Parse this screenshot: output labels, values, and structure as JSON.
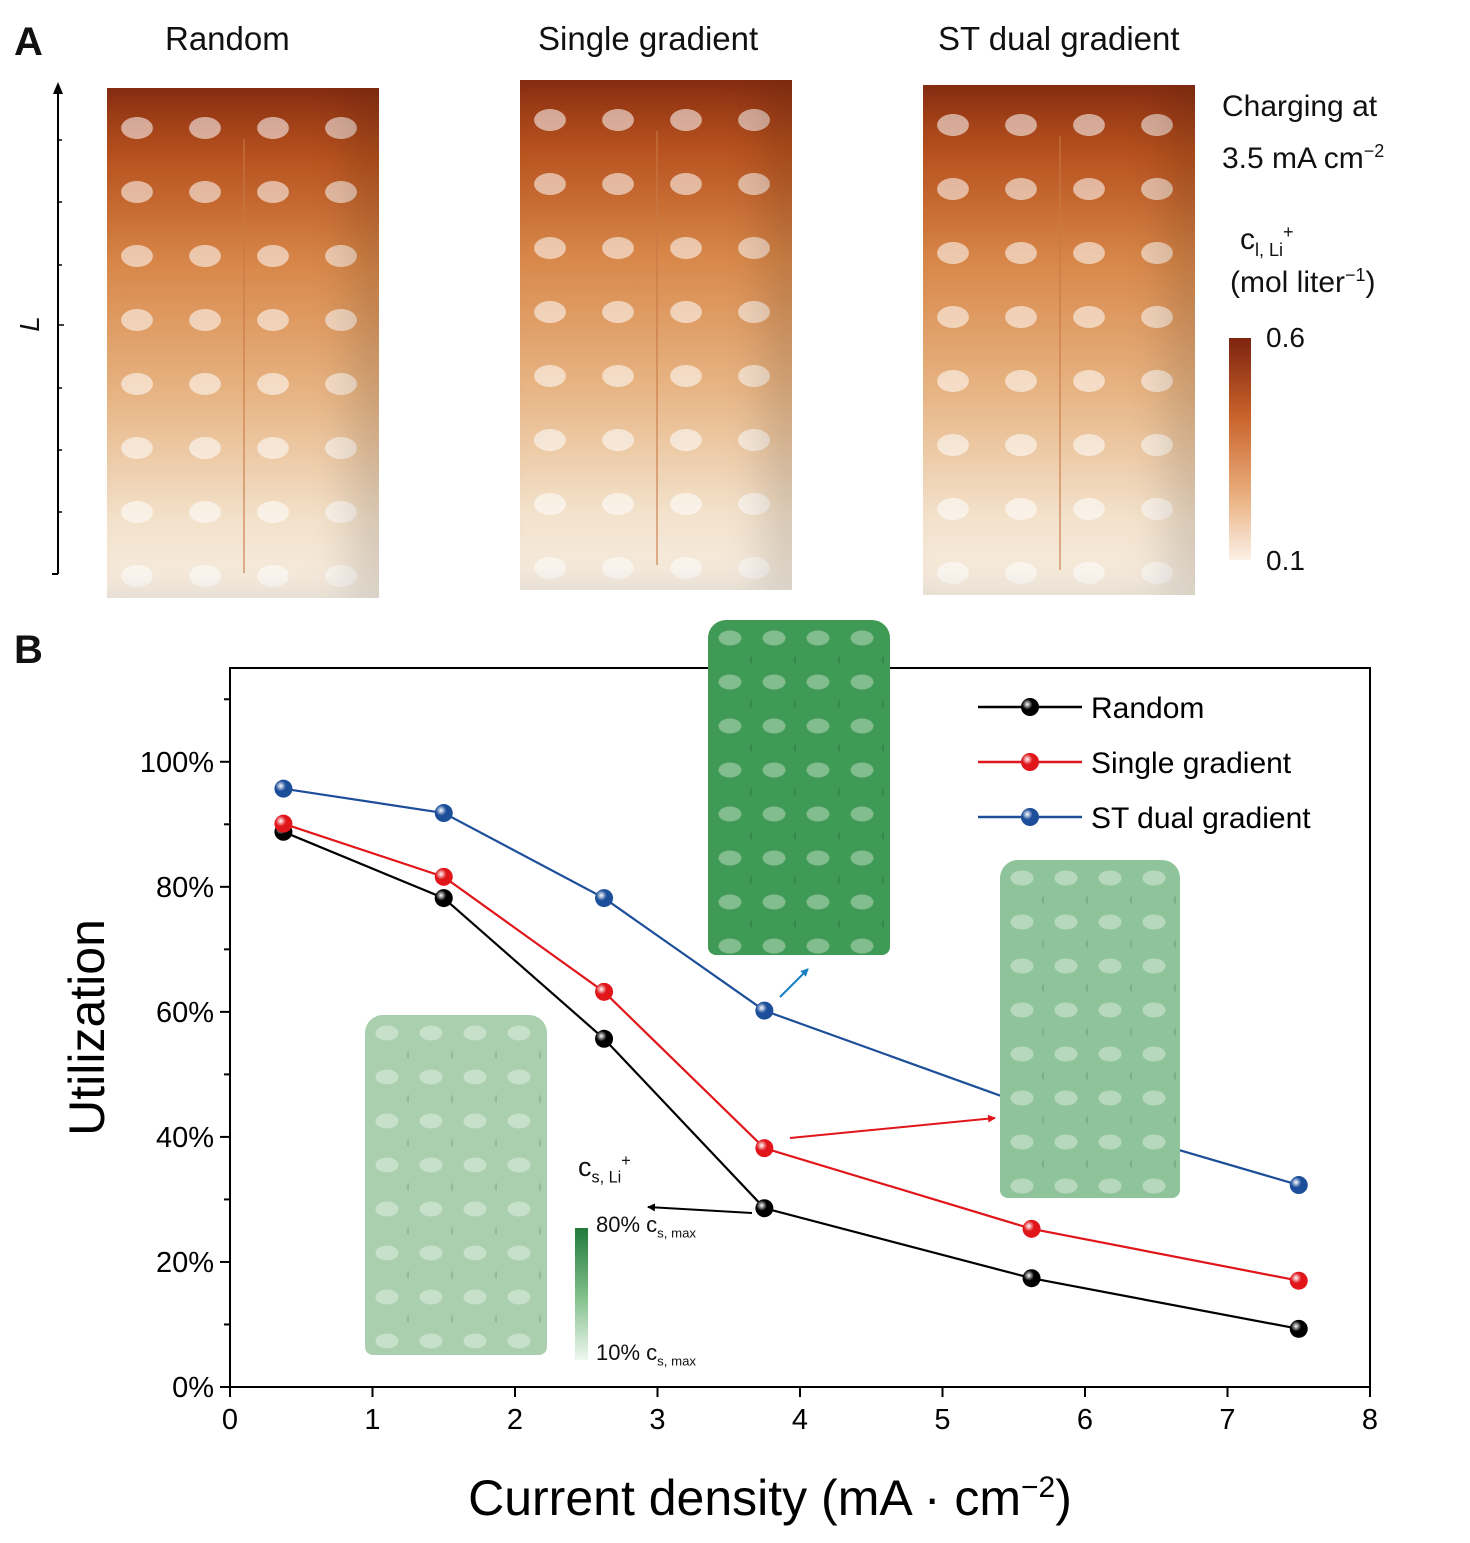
{
  "panel_a": {
    "letter": "A",
    "columns": [
      "Random",
      "Single gradient",
      "ST dual gradient"
    ],
    "axis_label": "L",
    "condition_line1": "Charging at",
    "condition_line2": "3.5 mA cm",
    "condition_exp": "−2",
    "colorbar": {
      "symbol": "c",
      "subscript": "l, Li",
      "sup": "+",
      "unit": "(mol liter",
      "unit_exp": "−1",
      "unit_close": ")",
      "max": "0.6",
      "min": "0.1",
      "colors": [
        "#7d2410",
        "#fbf1e6"
      ]
    }
  },
  "panel_b": {
    "letter": "B",
    "inset_colorbar": {
      "symbol": "c",
      "subscript": "s, Li",
      "sup": "+",
      "max_pct": "80% c",
      "max_sub": "s, max",
      "min_pct": "10% c",
      "min_sub": "s, max",
      "colors": [
        "#1f7a3a",
        "#eef7ef"
      ]
    }
  },
  "chart_data": {
    "type": "line",
    "xlabel": "Current density (mA · cm",
    "xlabel_exp": "−2",
    "xlabel_close": ")",
    "ylabel": "Utilization",
    "xlim": [
      0,
      8
    ],
    "ylim": [
      0,
      115
    ],
    "xticks": [
      0,
      1,
      2,
      3,
      4,
      5,
      6,
      7,
      8
    ],
    "xtick_labels": [
      "0",
      "1",
      "2",
      "3",
      "4",
      "5",
      "6",
      "7",
      "8"
    ],
    "yticks": [
      0,
      20,
      40,
      60,
      80,
      100
    ],
    "ytick_labels": [
      "0%",
      "20%",
      "40%",
      "60%",
      "80%",
      "100%"
    ],
    "grid": false,
    "legend_position": "top-right",
    "x": [
      0.375,
      1.5,
      2.625,
      3.75,
      5.625,
      7.5
    ],
    "series": [
      {
        "name": "Random",
        "color": "#000000",
        "values": [
          88.8,
          78.2,
          55.7,
          28.6,
          17.4,
          9.3
        ]
      },
      {
        "name": "Single gradient",
        "color": "#e0161b",
        "values": [
          90.1,
          81.6,
          63.2,
          38.2,
          25.3,
          17.0
        ]
      },
      {
        "name": "ST dual gradient",
        "color": "#1d4e9a",
        "values": [
          95.7,
          91.8,
          78.2,
          60.2,
          44.8,
          32.3
        ]
      }
    ]
  }
}
